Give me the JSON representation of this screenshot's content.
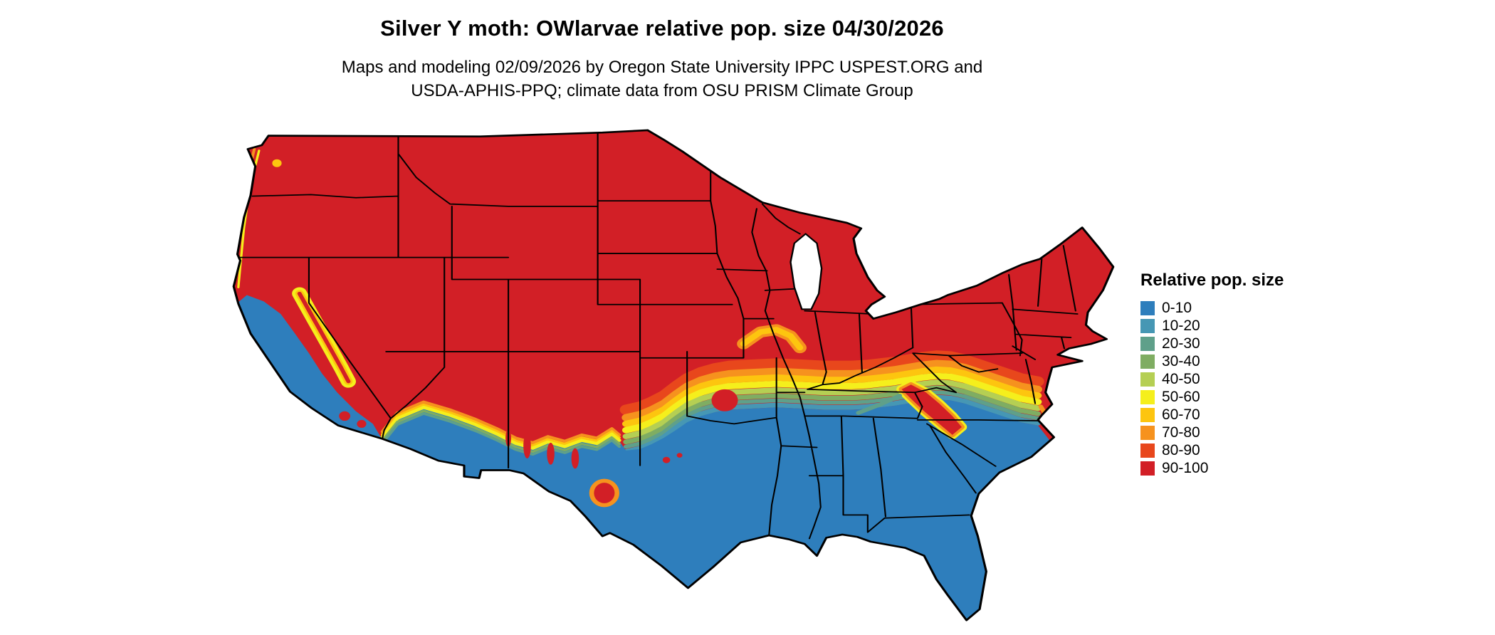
{
  "header": {
    "title": "Silver Y moth: OWlarvae relative pop. size 04/30/2026",
    "subtitle_line1": "Maps and modeling 02/09/2026 by Oregon State University IPPC USPEST.ORG and",
    "subtitle_line2": "USDA-APHIS-PPQ; climate data from OSU PRISM Climate Group"
  },
  "legend": {
    "title": "Relative pop. size",
    "items": [
      {
        "label": "0-10",
        "color": "#2e7ebc"
      },
      {
        "label": "10-20",
        "color": "#4697b4"
      },
      {
        "label": "20-30",
        "color": "#5fa08a"
      },
      {
        "label": "30-40",
        "color": "#7fad62"
      },
      {
        "label": "40-50",
        "color": "#b5cf53"
      },
      {
        "label": "50-60",
        "color": "#f5ef1c"
      },
      {
        "label": "60-70",
        "color": "#fdc50f"
      },
      {
        "label": "70-80",
        "color": "#f6921e"
      },
      {
        "label": "80-90",
        "color": "#e8471c"
      },
      {
        "label": "90-100",
        "color": "#d21f26"
      }
    ]
  },
  "map": {
    "water_color": "#ffffff",
    "border_color": "#000000"
  }
}
